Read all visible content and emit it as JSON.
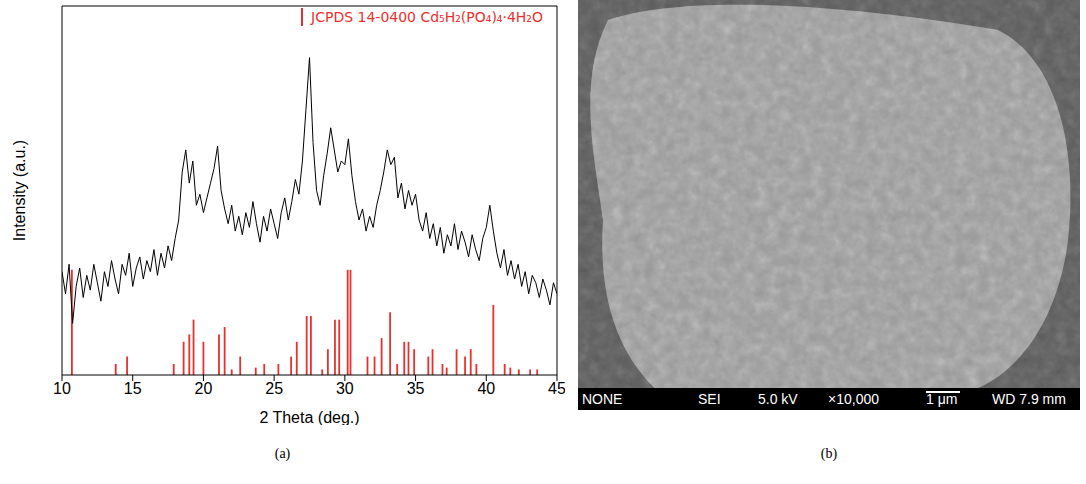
{
  "chart_data": {
    "type": "line",
    "panel_label": "(a)",
    "x_label": "2 Theta (deg.)",
    "y_label": "Intensity (a.u.)",
    "xlim": [
      10,
      45
    ],
    "xticks": [
      10,
      15,
      20,
      25,
      30,
      35,
      40,
      45
    ],
    "ylim": [
      0,
      100
    ],
    "yticks": [],
    "tick_labels": "x",
    "grid": false,
    "legend": "upper right",
    "series": [
      {
        "type": "line",
        "color": "#000000",
        "line_style": "solid",
        "marker": "none",
        "x": [
          10,
          10.25,
          10.5,
          10.75,
          11,
          11.25,
          11.5,
          11.75,
          12,
          12.25,
          12.5,
          12.75,
          13,
          13.25,
          13.5,
          13.75,
          14,
          14.25,
          14.5,
          14.75,
          15,
          15.25,
          15.5,
          15.75,
          16,
          16.25,
          16.5,
          16.75,
          17,
          17.25,
          17.5,
          17.75,
          18,
          18.25,
          18.5,
          18.75,
          19,
          19.25,
          19.5,
          19.75,
          20,
          20.25,
          20.5,
          20.75,
          21,
          21.25,
          21.5,
          21.75,
          22,
          22.25,
          22.5,
          22.75,
          23,
          23.25,
          23.5,
          23.75,
          24,
          24.25,
          24.5,
          24.75,
          25,
          25.25,
          25.5,
          25.75,
          26,
          26.25,
          26.5,
          26.75,
          27,
          27.25,
          27.5,
          27.75,
          28,
          28.25,
          28.5,
          28.75,
          29,
          29.25,
          29.5,
          29.75,
          30,
          30.25,
          30.5,
          30.75,
          31,
          31.25,
          31.5,
          31.75,
          32,
          32.25,
          32.5,
          32.75,
          33,
          33.25,
          33.5,
          33.75,
          34,
          34.25,
          34.5,
          34.75,
          35,
          35.25,
          35.5,
          35.75,
          36,
          36.25,
          36.5,
          36.75,
          37,
          37.25,
          37.5,
          37.75,
          38,
          38.25,
          38.5,
          38.75,
          39,
          39.25,
          39.5,
          39.75,
          40,
          40.25,
          40.5,
          40.75,
          41,
          41.25,
          41.5,
          41.75,
          42,
          42.25,
          42.5,
          42.75,
          43,
          43.25,
          43.5,
          43.75,
          44,
          44.25,
          44.5,
          44.75,
          45
        ],
        "values": [
          28,
          22,
          30,
          14,
          24,
          29,
          21,
          27,
          23,
          30,
          25,
          20,
          28,
          24,
          31,
          26,
          22,
          30,
          27,
          33,
          24,
          29,
          32,
          26,
          31,
          28,
          34,
          27,
          33,
          29,
          35,
          31,
          37,
          42,
          55,
          61,
          52,
          58,
          46,
          49,
          44,
          48,
          52,
          56,
          62,
          50,
          45,
          41,
          46,
          39,
          43,
          38,
          44,
          40,
          47,
          41,
          36,
          43,
          39,
          45,
          41,
          37,
          44,
          48,
          42,
          47,
          53,
          49,
          58,
          72,
          86,
          63,
          50,
          46,
          54,
          60,
          67,
          61,
          55,
          58,
          57,
          64,
          54,
          47,
          42,
          45,
          39,
          43,
          40,
          46,
          50,
          55,
          61,
          57,
          59,
          48,
          52,
          45,
          50,
          46,
          49,
          42,
          39,
          44,
          37,
          41,
          35,
          40,
          33,
          38,
          35,
          41,
          34,
          39,
          36,
          32,
          38,
          34,
          31,
          37,
          40,
          46,
          39,
          33,
          29,
          34,
          27,
          31,
          26,
          30,
          24,
          28,
          22,
          27,
          25,
          21,
          26,
          23,
          19,
          25,
          22
        ]
      },
      {
        "type": "stick",
        "name": "JCPDS 14-0400 Cd₅H₂(PO₄)₄·4H₂O",
        "color": "#e8312f",
        "x": [
          10.7,
          13.8,
          14.6,
          17.9,
          18.6,
          19.0,
          19.3,
          20.0,
          21.1,
          21.5,
          22.0,
          22.6,
          23.7,
          24.3,
          25.3,
          26.2,
          26.6,
          27.3,
          27.6,
          28.4,
          28.8,
          29.3,
          29.6,
          30.2,
          30.4,
          31.6,
          32.1,
          32.6,
          33.2,
          33.7,
          34.2,
          34.5,
          34.9,
          35.9,
          36.2,
          36.9,
          37.2,
          37.9,
          38.5,
          38.9,
          39.3,
          40.5,
          41.3,
          41.7,
          42.3,
          43.1,
          43.6
        ],
        "values": [
          28.5,
          3,
          5,
          3,
          9,
          11,
          15,
          9,
          11,
          13,
          1.5,
          5,
          2,
          3,
          3,
          5,
          9,
          16,
          16,
          1.5,
          7,
          15,
          15,
          28.5,
          28.5,
          5,
          5,
          10,
          17,
          3,
          9,
          9,
          7,
          5,
          7,
          3,
          2,
          7,
          5,
          7,
          3,
          19,
          3,
          2,
          1.5,
          1.5,
          1.5
        ]
      }
    ]
  },
  "sem_image": {
    "panel_label": "(b)",
    "info_bar": {
      "signal": "NONE",
      "detector": "SEI",
      "voltage": "5.0 kV",
      "magnification": "×10,000",
      "scale_bar": "1 μm",
      "working_distance": "WD 7.9 mm"
    }
  }
}
